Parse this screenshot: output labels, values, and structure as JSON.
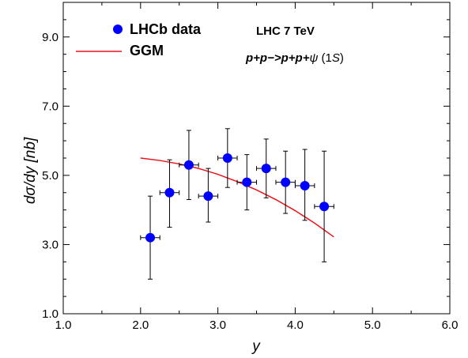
{
  "chart_data": {
    "type": "scatter",
    "xlabel": "y",
    "ylabel": "dσ/dy [nb]",
    "xlim": [
      1.0,
      6.0
    ],
    "ylim": [
      1.0,
      10.0
    ],
    "x_ticks": [
      {
        "value": 1.0,
        "label": "1.0"
      },
      {
        "value": 2.0,
        "label": "2.0"
      },
      {
        "value": 3.0,
        "label": "3.0"
      },
      {
        "value": 4.0,
        "label": "4.0"
      },
      {
        "value": 5.0,
        "label": "5.0"
      },
      {
        "value": 6.0,
        "label": "6.0"
      }
    ],
    "y_ticks": [
      {
        "value": 1.0,
        "label": "1.0"
      },
      {
        "value": 3.0,
        "label": "3.0"
      },
      {
        "value": 5.0,
        "label": "5.0"
      },
      {
        "value": 7.0,
        "label": "7.0"
      },
      {
        "value": 9.0,
        "label": "9.0"
      }
    ],
    "grid": false,
    "legend": {
      "position": "top-left",
      "entries": [
        {
          "label": "LHCb data",
          "kind": "marker",
          "color": "#0000ff"
        },
        {
          "label": "GGM",
          "kind": "line",
          "color": "#e8141c"
        }
      ]
    },
    "annotations": {
      "energy": "LHC 7 TeV",
      "process_prefix": "p+p−>p+p+",
      "process_psi": "ψ",
      "process_suffix_a": " (1",
      "process_suffix_s": "S",
      "process_suffix_b": ")"
    },
    "series": [
      {
        "name": "LHCb data",
        "kind": "points",
        "color": "#0000ff",
        "x": [
          2.125,
          2.375,
          2.625,
          2.875,
          3.125,
          3.375,
          3.625,
          3.875,
          4.125,
          4.375
        ],
        "y": [
          3.2,
          4.5,
          5.3,
          4.4,
          5.5,
          4.8,
          5.2,
          4.8,
          4.7,
          4.1
        ],
        "x_err": 0.125,
        "y_err_low": [
          1.2,
          1.0,
          1.0,
          0.75,
          0.85,
          0.8,
          0.85,
          0.9,
          1.0,
          1.6
        ],
        "y_err_high": [
          1.2,
          0.95,
          1.0,
          0.8,
          0.85,
          0.8,
          0.85,
          0.9,
          1.05,
          1.6
        ]
      },
      {
        "name": "GGM",
        "kind": "line",
        "color": "#e8141c",
        "x": [
          2.0,
          2.25,
          2.5,
          2.75,
          3.0,
          3.25,
          3.5,
          3.75,
          4.0,
          4.25,
          4.5
        ],
        "y": [
          5.5,
          5.43,
          5.33,
          5.2,
          5.03,
          4.82,
          4.58,
          4.3,
          3.98,
          3.62,
          3.22
        ]
      }
    ]
  }
}
